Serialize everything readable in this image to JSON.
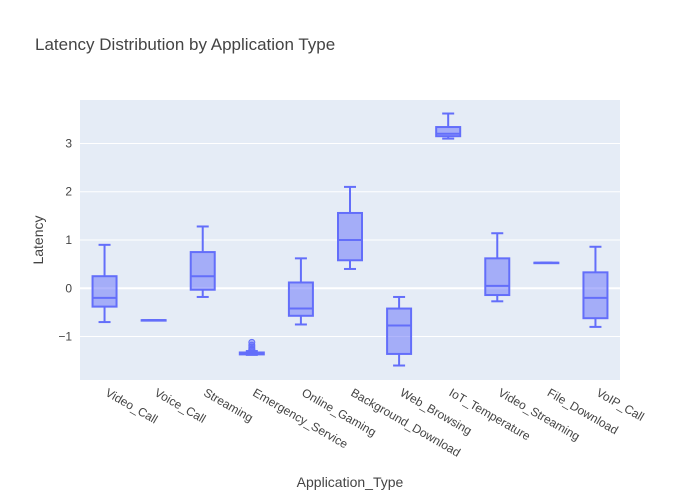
{
  "chart_data": {
    "type": "box",
    "title": "Latency Distribution by Application Type",
    "xlabel": "Application_Type",
    "ylabel": "Latency",
    "ylim": [
      -1.9,
      3.9
    ],
    "yticks": [
      -1,
      0,
      1,
      2,
      3
    ],
    "ytick_labels": [
      "−1",
      "0",
      "1",
      "2",
      "3"
    ],
    "grid": true,
    "colors": {
      "plot_bg": "#e5ecf6",
      "box_line": "#636efa",
      "box_fill": "#636efa",
      "grid": "#ffffff"
    },
    "categories": [
      "Video_Call",
      "Voice_Call",
      "Streaming",
      "Emergency_Service",
      "Online_Gaming",
      "Background_Download",
      "Web_Browsing",
      "IoT_Temperature",
      "Video_Streaming",
      "File_Download",
      "VoIP_Call"
    ],
    "boxes": [
      {
        "category": "Video_Call",
        "min": -0.7,
        "q1": -0.38,
        "median": -0.2,
        "q3": 0.25,
        "max": 0.9
      },
      {
        "category": "Voice_Call",
        "min": -0.66,
        "q1": -0.66,
        "median": -0.66,
        "q3": -0.66,
        "max": -0.66
      },
      {
        "category": "Streaming",
        "min": -0.18,
        "q1": -0.03,
        "median": 0.25,
        "q3": 0.75,
        "max": 1.28
      },
      {
        "category": "Emergency_Service",
        "min": -1.38,
        "q1": -1.37,
        "median": -1.35,
        "q3": -1.33,
        "max": -1.3,
        "outliers": [
          -1.12,
          -1.18,
          -1.22,
          -1.26,
          -1.28
        ]
      },
      {
        "category": "Online_Gaming",
        "min": -0.75,
        "q1": -0.57,
        "median": -0.42,
        "q3": 0.12,
        "max": 0.62
      },
      {
        "category": "Background_Download",
        "min": 0.4,
        "q1": 0.58,
        "median": 1.0,
        "q3": 1.56,
        "max": 2.1
      },
      {
        "category": "Web_Browsing",
        "min": -1.6,
        "q1": -1.36,
        "median": -0.77,
        "q3": -0.42,
        "max": -0.18
      },
      {
        "category": "IoT_Temperature",
        "min": 3.1,
        "q1": 3.15,
        "median": 3.2,
        "q3": 3.34,
        "max": 3.62
      },
      {
        "category": "Video_Streaming",
        "min": -0.27,
        "q1": -0.14,
        "median": 0.05,
        "q3": 0.62,
        "max": 1.14
      },
      {
        "category": "File_Download",
        "min": 0.53,
        "q1": 0.53,
        "median": 0.53,
        "q3": 0.53,
        "max": 0.53
      },
      {
        "category": "VoIP_Call",
        "min": -0.8,
        "q1": -0.62,
        "median": -0.2,
        "q3": 0.33,
        "max": 0.86
      }
    ]
  }
}
